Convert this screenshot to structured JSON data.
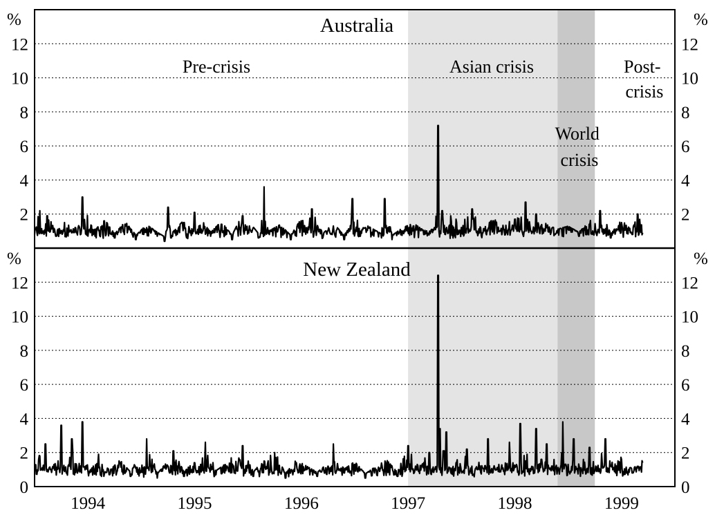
{
  "chart_data": [
    {
      "type": "line",
      "title": "Australia",
      "unit": "%",
      "ylim": [
        0,
        14
      ],
      "yticks": [
        "2",
        "4",
        "6",
        "8",
        "10",
        "12"
      ],
      "grid": true,
      "xlim": [
        1993.5,
        1999.5
      ],
      "series_color": "#000000",
      "periods": [
        {
          "label": "Pre-crisis",
          "start": 1993.5,
          "end": 1997.0,
          "shade": "none"
        },
        {
          "label": "Asian crisis",
          "start": 1997.0,
          "end": 1998.4,
          "shade": "#e4e4e4"
        },
        {
          "label": "World crisis",
          "start": 1998.4,
          "end": 1998.75,
          "shade": "#c8c8c8"
        },
        {
          "label": "Post-crisis",
          "start": 1998.75,
          "end": 1999.5,
          "shade": "none"
        }
      ],
      "series": [
        {
          "x": [
            1993.5,
            1993.55,
            1993.58,
            1993.62,
            1993.7,
            1993.78,
            1993.85,
            1993.95,
            1994.05,
            1994.15,
            1994.25,
            1994.35,
            1994.45,
            1994.55,
            1994.65,
            1994.72,
            1994.75,
            1994.78,
            1994.9,
            1995.0,
            1995.15,
            1995.25,
            1995.35,
            1995.45,
            1995.6,
            1995.65,
            1995.7,
            1995.8,
            1995.9,
            1996.0,
            1996.1,
            1996.2,
            1996.3,
            1996.4,
            1996.45,
            1996.48,
            1996.55,
            1996.6,
            1996.75,
            1996.78,
            1996.85,
            1996.95,
            1997.05,
            1997.15,
            1997.25,
            1997.28,
            1997.3,
            1997.32,
            1997.35,
            1997.4,
            1997.5,
            1997.6,
            1997.7,
            1997.8,
            1997.9,
            1998.0,
            1998.1,
            1998.15,
            1998.2,
            1998.3,
            1998.4,
            1998.5,
            1998.6,
            1998.7,
            1998.8,
            1998.9,
            1999.0,
            1999.1,
            1999.15,
            1999.2
          ],
          "y": [
            0.8,
            2.2,
            1.0,
            1.9,
            0.7,
            1.5,
            0.9,
            3.0,
            0.8,
            1.6,
            0.6,
            1.4,
            0.5,
            1.2,
            0.7,
            0.4,
            2.4,
            0.6,
            1.5,
            2.1,
            0.7,
            1.4,
            0.5,
            1.9,
            0.6,
            3.6,
            0.8,
            1.2,
            0.5,
            1.6,
            2.3,
            0.6,
            1.3,
            0.5,
            1.0,
            2.9,
            0.7,
            1.2,
            0.6,
            2.9,
            0.5,
            1.0,
            1.3,
            0.8,
            1.2,
            7.2,
            1.0,
            2.2,
            0.8,
            1.9,
            1.2,
            2.3,
            0.9,
            1.6,
            1.1,
            1.7,
            2.7,
            1.0,
            2.0,
            1.2,
            0.9,
            1.1,
            0.7,
            1.4,
            2.2,
            0.6,
            1.5,
            0.8,
            2.0,
            0.9
          ]
        }
      ]
    },
    {
      "type": "line",
      "title": "New Zealand",
      "unit": "%",
      "ylim": [
        0,
        14
      ],
      "yticks": [
        "0",
        "2",
        "4",
        "6",
        "8",
        "10",
        "12"
      ],
      "grid": true,
      "xlim": [
        1993.5,
        1999.5
      ],
      "xtick_labels": [
        "1994",
        "1995",
        "1996",
        "1997",
        "1998",
        "1999"
      ],
      "series_color": "#000000",
      "series": [
        {
          "x": [
            1993.5,
            1993.55,
            1993.6,
            1993.65,
            1993.75,
            1993.8,
            1993.85,
            1993.95,
            1994.05,
            1994.1,
            1994.2,
            1994.3,
            1994.4,
            1994.55,
            1994.65,
            1994.72,
            1994.8,
            1994.9,
            1995.0,
            1995.1,
            1995.2,
            1995.3,
            1995.45,
            1995.55,
            1995.65,
            1995.75,
            1995.85,
            1995.95,
            1996.05,
            1996.15,
            1996.25,
            1996.3,
            1996.4,
            1996.5,
            1996.6,
            1996.7,
            1996.8,
            1996.9,
            1997.0,
            1997.1,
            1997.2,
            1997.25,
            1997.28,
            1997.3,
            1997.33,
            1997.36,
            1997.45,
            1997.55,
            1997.65,
            1997.75,
            1997.85,
            1997.95,
            1998.05,
            1998.1,
            1998.2,
            1998.25,
            1998.3,
            1998.35,
            1998.45,
            1998.5,
            1998.55,
            1998.62,
            1998.7,
            1998.75,
            1998.85,
            1998.9,
            1999.0,
            1999.1,
            1999.2
          ],
          "y": [
            0.9,
            1.8,
            2.5,
            1.0,
            3.6,
            0.8,
            2.8,
            3.8,
            1.2,
            1.9,
            0.7,
            1.4,
            0.6,
            2.8,
            0.5,
            1.1,
            2.1,
            0.6,
            1.4,
            2.6,
            0.7,
            1.2,
            2.4,
            0.6,
            1.5,
            2.0,
            0.5,
            1.4,
            1.0,
            0.6,
            1.2,
            2.5,
            0.8,
            1.3,
            0.5,
            1.0,
            1.4,
            0.6,
            2.4,
            0.9,
            2.0,
            1.0,
            12.4,
            3.4,
            2.1,
            3.2,
            1.4,
            2.2,
            1.0,
            2.8,
            1.3,
            2.6,
            3.7,
            1.5,
            3.4,
            1.6,
            2.5,
            1.2,
            3.8,
            1.3,
            2.8,
            1.1,
            2.3,
            0.9,
            2.8,
            1.2,
            1.6,
            0.8,
            1.4
          ]
        }
      ]
    }
  ]
}
